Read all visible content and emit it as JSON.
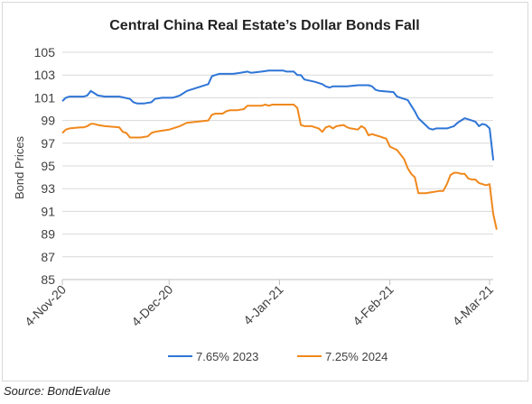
{
  "source": "Source: BondEvalue",
  "colors": {
    "series_1": "#2E75D6",
    "series_2": "#F0881C",
    "grid": "#d9d9d9",
    "axis": "#bfbfbf"
  },
  "chart_data": {
    "type": "line",
    "title": "Central China Real Estate’s Dollar Bonds Fall",
    "xlabel": "",
    "ylabel": "Bond Prices",
    "ylim": [
      85,
      105
    ],
    "yticks": [
      85,
      87,
      89,
      91,
      93,
      95,
      97,
      99,
      101,
      103,
      105
    ],
    "xlim": [
      "2020-11-04",
      "2021-03-05"
    ],
    "xticks": [
      {
        "date": "2020-11-04",
        "label": "4-Nov-20"
      },
      {
        "date": "2020-12-04",
        "label": "4-Dec-20"
      },
      {
        "date": "2021-01-04",
        "label": "4-Jan-21"
      },
      {
        "date": "2021-02-04",
        "label": "4-Feb-21"
      },
      {
        "date": "2021-03-04",
        "label": "4-Mar-21"
      }
    ],
    "grid": "horizontal",
    "legend_position": "bottom",
    "series": [
      {
        "name": "7.65% 2023",
        "points": [
          [
            "2020-11-04",
            100.7
          ],
          [
            "2020-11-05",
            101.0
          ],
          [
            "2020-11-06",
            101.1
          ],
          [
            "2020-11-09",
            101.1
          ],
          [
            "2020-11-10",
            101.1
          ],
          [
            "2020-11-11",
            101.2
          ],
          [
            "2020-11-12",
            101.6
          ],
          [
            "2020-11-13",
            101.4
          ],
          [
            "2020-11-14",
            101.2
          ],
          [
            "2020-11-16",
            101.1
          ],
          [
            "2020-11-18",
            101.1
          ],
          [
            "2020-11-20",
            101.1
          ],
          [
            "2020-11-23",
            100.9
          ],
          [
            "2020-11-24",
            100.6
          ],
          [
            "2020-11-25",
            100.5
          ],
          [
            "2020-11-27",
            100.5
          ],
          [
            "2020-11-29",
            100.6
          ],
          [
            "2020-11-30",
            100.9
          ],
          [
            "2020-12-02",
            101.0
          ],
          [
            "2020-12-05",
            101.0
          ],
          [
            "2020-12-07",
            101.2
          ],
          [
            "2020-12-09",
            101.6
          ],
          [
            "2020-12-12",
            101.9
          ],
          [
            "2020-12-15",
            102.2
          ],
          [
            "2020-12-16",
            102.9
          ],
          [
            "2020-12-17",
            103.0
          ],
          [
            "2020-12-18",
            103.1
          ],
          [
            "2020-12-22",
            103.1
          ],
          [
            "2020-12-24",
            103.2
          ],
          [
            "2020-12-26",
            103.3
          ],
          [
            "2020-12-27",
            103.2
          ],
          [
            "2020-12-30",
            103.3
          ],
          [
            "2021-01-01",
            103.4
          ],
          [
            "2021-01-05",
            103.4
          ],
          [
            "2021-01-06",
            103.3
          ],
          [
            "2021-01-08",
            103.3
          ],
          [
            "2021-01-09",
            103.0
          ],
          [
            "2021-01-10",
            103.0
          ],
          [
            "2021-01-11",
            102.6
          ],
          [
            "2021-01-14",
            102.4
          ],
          [
            "2021-01-16",
            102.2
          ],
          [
            "2021-01-17",
            102.0
          ],
          [
            "2021-01-18",
            101.9
          ],
          [
            "2021-01-19",
            102.0
          ],
          [
            "2021-01-23",
            102.0
          ],
          [
            "2021-01-26",
            102.1
          ],
          [
            "2021-01-29",
            102.1
          ],
          [
            "2021-01-30",
            102.0
          ],
          [
            "2021-01-31",
            101.7
          ],
          [
            "2021-02-01",
            101.6
          ],
          [
            "2021-02-05",
            101.5
          ],
          [
            "2021-02-06",
            101.1
          ],
          [
            "2021-02-07",
            101.0
          ],
          [
            "2021-02-09",
            100.8
          ],
          [
            "2021-02-10",
            100.3
          ],
          [
            "2021-02-11",
            99.8
          ],
          [
            "2021-02-12",
            99.2
          ],
          [
            "2021-02-13",
            98.9
          ],
          [
            "2021-02-15",
            98.3
          ],
          [
            "2021-02-16",
            98.2
          ],
          [
            "2021-02-17",
            98.3
          ],
          [
            "2021-02-20",
            98.3
          ],
          [
            "2021-02-22",
            98.5
          ],
          [
            "2021-02-23",
            98.8
          ],
          [
            "2021-02-24",
            99.0
          ],
          [
            "2021-02-25",
            99.2
          ],
          [
            "2021-02-26",
            99.1
          ],
          [
            "2021-02-27",
            99.0
          ],
          [
            "2021-02-28",
            98.9
          ],
          [
            "2021-03-01",
            98.5
          ],
          [
            "2021-03-02",
            98.7
          ],
          [
            "2021-03-03",
            98.6
          ],
          [
            "2021-03-04",
            98.3
          ],
          [
            "2021-03-05",
            95.6
          ],
          [
            "2021-03-05",
            95.5
          ]
        ]
      },
      {
        "name": "7.25% 2024",
        "points": [
          [
            "2020-11-04",
            97.9
          ],
          [
            "2020-11-05",
            98.2
          ],
          [
            "2020-11-06",
            98.3
          ],
          [
            "2020-11-09",
            98.4
          ],
          [
            "2020-11-10",
            98.4
          ],
          [
            "2020-11-11",
            98.5
          ],
          [
            "2020-11-12",
            98.7
          ],
          [
            "2020-11-13",
            98.7
          ],
          [
            "2020-11-14",
            98.6
          ],
          [
            "2020-11-16",
            98.5
          ],
          [
            "2020-11-20",
            98.4
          ],
          [
            "2020-11-21",
            98.0
          ],
          [
            "2020-11-22",
            97.9
          ],
          [
            "2020-11-23",
            97.5
          ],
          [
            "2020-11-26",
            97.5
          ],
          [
            "2020-11-28",
            97.6
          ],
          [
            "2020-11-29",
            97.9
          ],
          [
            "2020-11-30",
            98.0
          ],
          [
            "2020-12-02",
            98.1
          ],
          [
            "2020-12-04",
            98.2
          ],
          [
            "2020-12-07",
            98.5
          ],
          [
            "2020-12-09",
            98.8
          ],
          [
            "2020-12-12",
            98.9
          ],
          [
            "2020-12-15",
            99.0
          ],
          [
            "2020-12-16",
            99.5
          ],
          [
            "2020-12-17",
            99.6
          ],
          [
            "2020-12-19",
            99.6
          ],
          [
            "2020-12-20",
            99.8
          ],
          [
            "2020-12-21",
            99.9
          ],
          [
            "2020-12-23",
            99.9
          ],
          [
            "2020-12-25",
            100.0
          ],
          [
            "2020-12-26",
            100.3
          ],
          [
            "2020-12-30",
            100.3
          ],
          [
            "2020-12-31",
            100.4
          ],
          [
            "2021-01-01",
            100.3
          ],
          [
            "2021-01-02",
            100.4
          ],
          [
            "2021-01-05",
            100.4
          ],
          [
            "2021-01-06",
            100.4
          ],
          [
            "2021-01-08",
            100.4
          ],
          [
            "2021-01-09",
            100.1
          ],
          [
            "2021-01-10",
            98.6
          ],
          [
            "2021-01-11",
            98.5
          ],
          [
            "2021-01-13",
            98.5
          ],
          [
            "2021-01-14",
            98.4
          ],
          [
            "2021-01-15",
            98.3
          ],
          [
            "2021-01-16",
            98.0
          ],
          [
            "2021-01-17",
            98.4
          ],
          [
            "2021-01-18",
            98.5
          ],
          [
            "2021-01-19",
            98.3
          ],
          [
            "2021-01-20",
            98.5
          ],
          [
            "2021-01-22",
            98.6
          ],
          [
            "2021-01-23",
            98.4
          ],
          [
            "2021-01-24",
            98.3
          ],
          [
            "2021-01-26",
            98.2
          ],
          [
            "2021-01-27",
            98.5
          ],
          [
            "2021-01-28",
            98.3
          ],
          [
            "2021-01-29",
            97.7
          ],
          [
            "2021-01-30",
            97.8
          ],
          [
            "2021-01-31",
            97.7
          ],
          [
            "2021-02-01",
            97.6
          ],
          [
            "2021-02-02",
            97.5
          ],
          [
            "2021-02-03",
            97.4
          ],
          [
            "2021-02-04",
            96.7
          ],
          [
            "2021-02-06",
            96.4
          ],
          [
            "2021-02-08",
            95.6
          ],
          [
            "2021-02-09",
            94.8
          ],
          [
            "2021-02-10",
            94.3
          ],
          [
            "2021-02-11",
            94.0
          ],
          [
            "2021-02-12",
            92.6
          ],
          [
            "2021-02-13",
            92.6
          ],
          [
            "2021-02-14",
            92.6
          ],
          [
            "2021-02-16",
            92.7
          ],
          [
            "2021-02-18",
            92.8
          ],
          [
            "2021-02-19",
            92.8
          ],
          [
            "2021-02-20",
            93.4
          ],
          [
            "2021-02-21",
            94.2
          ],
          [
            "2021-02-22",
            94.4
          ],
          [
            "2021-02-23",
            94.4
          ],
          [
            "2021-02-24",
            94.3
          ],
          [
            "2021-02-25",
            94.3
          ],
          [
            "2021-02-26",
            93.9
          ],
          [
            "2021-02-27",
            93.8
          ],
          [
            "2021-02-28",
            93.8
          ],
          [
            "2021-03-01",
            93.5
          ],
          [
            "2021-03-02",
            93.4
          ],
          [
            "2021-03-03",
            93.3
          ],
          [
            "2021-03-04",
            93.4
          ],
          [
            "2021-03-05",
            90.8
          ],
          [
            "2021-03-06",
            89.4
          ]
        ]
      }
    ]
  }
}
